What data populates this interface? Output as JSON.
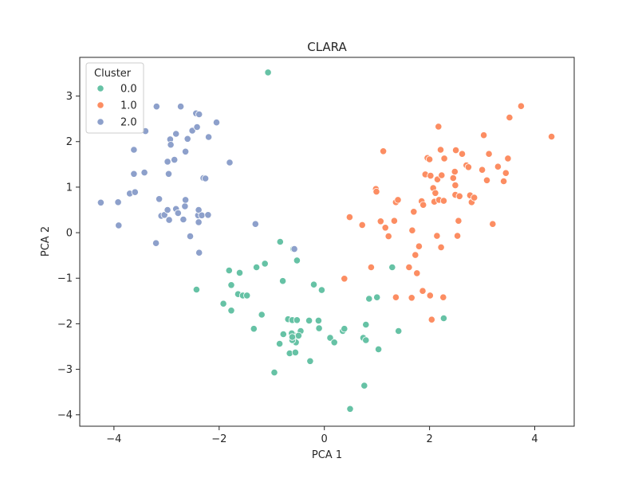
{
  "chart_data": {
    "type": "scatter",
    "title": "CLARA",
    "xlabel": "PCA 1",
    "ylabel": "PCA 2",
    "xlim": [
      -4.65,
      4.75
    ],
    "ylim": [
      -4.25,
      3.85
    ],
    "xticks": [
      -4,
      -2,
      0,
      2,
      4
    ],
    "yticks": [
      -4,
      -3,
      -2,
      -1,
      0,
      1,
      2,
      3
    ],
    "grid": false,
    "legend": {
      "title": "Cluster",
      "placement": "top-left"
    },
    "series": [
      {
        "name": "0.0",
        "color": "#66c2a5",
        "points": [
          [
            -1.07,
            3.52
          ],
          [
            -2.43,
            -1.25
          ],
          [
            -1.81,
            -0.83
          ],
          [
            -1.77,
            -1.15
          ],
          [
            -1.61,
            -0.88
          ],
          [
            -1.29,
            -0.76
          ],
          [
            -1.13,
            -0.68
          ],
          [
            -0.84,
            -0.2
          ],
          [
            -0.79,
            -1.06
          ],
          [
            -0.59,
            -0.36
          ],
          [
            -0.52,
            -0.61
          ],
          [
            -1.92,
            -1.56
          ],
          [
            -1.77,
            -1.71
          ],
          [
            -1.64,
            -1.35
          ],
          [
            -1.55,
            -1.38
          ],
          [
            -1.47,
            -1.38
          ],
          [
            -1.19,
            -1.8
          ],
          [
            -1.34,
            -2.11
          ],
          [
            -0.78,
            -2.23
          ],
          [
            -0.69,
            -1.9
          ],
          [
            -0.61,
            -1.92
          ],
          [
            -0.52,
            -1.92
          ],
          [
            -0.45,
            -2.16
          ],
          [
            -0.29,
            -1.93
          ],
          [
            -0.11,
            -1.93
          ],
          [
            -0.2,
            -1.14
          ],
          [
            -0.05,
            -1.26
          ],
          [
            -0.85,
            -2.44
          ],
          [
            -0.66,
            -2.65
          ],
          [
            -0.55,
            -2.63
          ],
          [
            -0.58,
            -2.25
          ],
          [
            -0.62,
            -2.21
          ],
          [
            -0.57,
            -2.33
          ],
          [
            -0.54,
            -2.41
          ],
          [
            -0.49,
            -2.26
          ],
          [
            -0.61,
            -2.36
          ],
          [
            -0.61,
            -2.29
          ],
          [
            -0.27,
            -2.82
          ],
          [
            -0.1,
            -2.1
          ],
          [
            0.11,
            -2.31
          ],
          [
            0.19,
            -2.41
          ],
          [
            0.35,
            -2.16
          ],
          [
            0.38,
            -2.11
          ],
          [
            0.74,
            -2.31
          ],
          [
            0.79,
            -2.36
          ],
          [
            0.79,
            -2.02
          ],
          [
            0.85,
            -1.45
          ],
          [
            1.0,
            -1.42
          ],
          [
            1.03,
            -2.56
          ],
          [
            1.29,
            -0.76
          ],
          [
            1.41,
            -2.16
          ],
          [
            -0.95,
            -3.07
          ],
          [
            0.76,
            -3.36
          ],
          [
            0.49,
            -3.87
          ],
          [
            2.27,
            -1.88
          ]
        ]
      },
      {
        "name": "1.0",
        "color": "#fc8d62",
        "points": [
          [
            0.48,
            0.34
          ],
          [
            0.38,
            -1.01
          ],
          [
            0.72,
            0.17
          ],
          [
            0.89,
            -0.76
          ],
          [
            0.98,
            0.96
          ],
          [
            0.99,
            0.9
          ],
          [
            1.07,
            0.25
          ],
          [
            1.12,
            1.79
          ],
          [
            1.16,
            0.11
          ],
          [
            1.22,
            -0.08
          ],
          [
            1.33,
            0.26
          ],
          [
            1.36,
            0.67
          ],
          [
            1.4,
            0.72
          ],
          [
            1.36,
            -1.42
          ],
          [
            1.67,
            0.05
          ],
          [
            1.61,
            -0.76
          ],
          [
            1.66,
            -1.43
          ],
          [
            1.7,
            0.46
          ],
          [
            1.73,
            -0.49
          ],
          [
            1.76,
            -0.89
          ],
          [
            1.8,
            -0.3
          ],
          [
            1.85,
            0.69
          ],
          [
            1.87,
            -1.28
          ],
          [
            1.88,
            0.61
          ],
          [
            1.92,
            1.28
          ],
          [
            1.96,
            1.64
          ],
          [
            2.0,
            1.61
          ],
          [
            2.01,
            -1.38
          ],
          [
            2.02,
            1.25
          ],
          [
            2.04,
            -1.91
          ],
          [
            2.07,
            0.98
          ],
          [
            2.09,
            0.68
          ],
          [
            2.11,
            0.87
          ],
          [
            2.14,
            -0.07
          ],
          [
            2.15,
            1.17
          ],
          [
            2.17,
            2.33
          ],
          [
            2.18,
            0.72
          ],
          [
            2.21,
            1.82
          ],
          [
            2.22,
            -0.32
          ],
          [
            2.23,
            1.26
          ],
          [
            2.26,
            -1.42
          ],
          [
            2.27,
            0.7
          ],
          [
            2.28,
            1.63
          ],
          [
            2.45,
            1.2
          ],
          [
            2.48,
            1.34
          ],
          [
            2.49,
            1.04
          ],
          [
            2.49,
            0.83
          ],
          [
            2.5,
            1.81
          ],
          [
            2.53,
            -0.07
          ],
          [
            2.55,
            0.26
          ],
          [
            2.57,
            0.8
          ],
          [
            2.62,
            1.73
          ],
          [
            2.7,
            1.48
          ],
          [
            2.74,
            1.44
          ],
          [
            2.77,
            0.82
          ],
          [
            2.8,
            0.67
          ],
          [
            2.85,
            0.77
          ],
          [
            3.0,
            1.38
          ],
          [
            3.03,
            2.14
          ],
          [
            3.09,
            1.15
          ],
          [
            3.13,
            1.73
          ],
          [
            3.2,
            0.19
          ],
          [
            3.3,
            1.45
          ],
          [
            3.41,
            1.13
          ],
          [
            3.45,
            1.31
          ],
          [
            3.49,
            1.63
          ],
          [
            3.52,
            2.53
          ],
          [
            3.74,
            2.78
          ],
          [
            4.32,
            2.11
          ]
        ]
      },
      {
        "name": "2.0",
        "color": "#8da0cb",
        "points": [
          [
            -4.25,
            0.66
          ],
          [
            -3.92,
            0.67
          ],
          [
            -3.91,
            0.16
          ],
          [
            -3.7,
            0.86
          ],
          [
            -3.6,
            0.89
          ],
          [
            -3.62,
            1.82
          ],
          [
            -3.62,
            1.29
          ],
          [
            -3.42,
            1.32
          ],
          [
            -3.4,
            2.23
          ],
          [
            -3.19,
            2.77
          ],
          [
            -3.2,
            -0.23
          ],
          [
            -3.14,
            0.74
          ],
          [
            -3.1,
            0.37
          ],
          [
            -3.04,
            0.39
          ],
          [
            -2.98,
            0.5
          ],
          [
            -2.98,
            1.56
          ],
          [
            -2.96,
            1.29
          ],
          [
            -2.95,
            0.28
          ],
          [
            -2.93,
            2.05
          ],
          [
            -2.92,
            1.93
          ],
          [
            -2.85,
            1.6
          ],
          [
            -2.82,
            0.52
          ],
          [
            -2.82,
            2.17
          ],
          [
            -2.78,
            0.43
          ],
          [
            -2.73,
            2.77
          ],
          [
            -2.68,
            0.29
          ],
          [
            -2.65,
            0.58
          ],
          [
            -2.64,
            0.72
          ],
          [
            -2.64,
            1.78
          ],
          [
            -2.6,
            2.06
          ],
          [
            -2.55,
            -0.08
          ],
          [
            -2.51,
            2.24
          ],
          [
            -2.44,
            2.62
          ],
          [
            -2.42,
            2.32
          ],
          [
            -2.4,
            0.38
          ],
          [
            -2.38,
            2.6
          ],
          [
            -2.39,
            0.23
          ],
          [
            -2.39,
            0.5
          ],
          [
            -2.38,
            -0.44
          ],
          [
            -2.33,
            0.38
          ],
          [
            -2.3,
            1.2
          ],
          [
            -2.26,
            1.19
          ],
          [
            -2.21,
            0.39
          ],
          [
            -2.2,
            2.1
          ],
          [
            -2.05,
            2.42
          ],
          [
            -1.8,
            1.54
          ],
          [
            -1.31,
            0.19
          ],
          [
            -0.57,
            -0.36
          ]
        ]
      }
    ]
  }
}
